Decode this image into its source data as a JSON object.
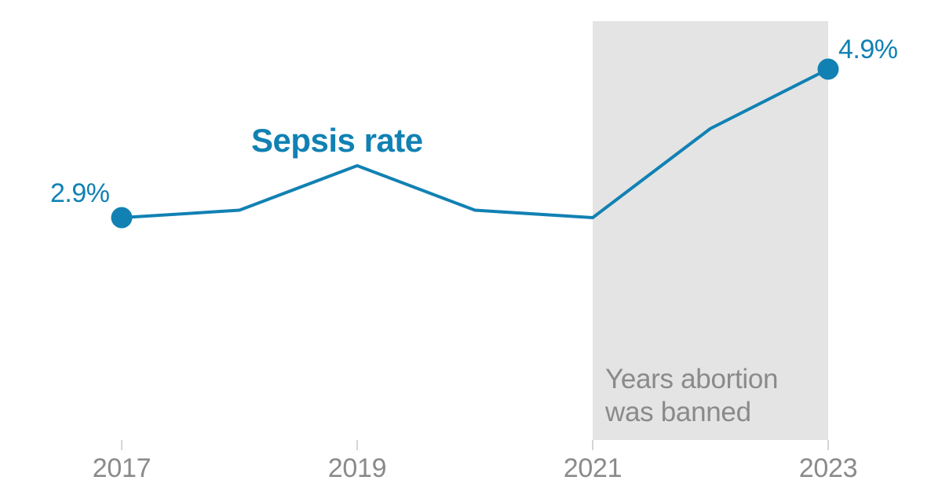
{
  "chart": {
    "title": "Sepsis rate",
    "annotation": {
      "lines": [
        "Years abortion",
        "was banned"
      ]
    },
    "point_labels": {
      "first": "2.9%",
      "last": "4.9%"
    },
    "colors": {
      "line": "#1181b3",
      "band": "#e4e4e4",
      "gray_text": "#8a8a8a",
      "tick": "#c9c9c9"
    }
  },
  "chart_data": {
    "type": "line",
    "title": "Sepsis rate",
    "x": [
      2017,
      2018,
      2019,
      2020,
      2021,
      2022,
      2023
    ],
    "values": [
      2.9,
      3.0,
      3.6,
      3.0,
      2.9,
      4.1,
      4.9
    ],
    "unit": "%",
    "x_ticks": [
      2017,
      2019,
      2021,
      2023
    ],
    "x_tick_labels": [
      "2017",
      "2019",
      "2021",
      "2023"
    ],
    "labeled_points": [
      {
        "x": 2017,
        "value": 2.9,
        "label": "2.9%"
      },
      {
        "x": 2023,
        "value": 4.9,
        "label": "4.9%"
      }
    ],
    "shaded_region": {
      "from_year": 2021,
      "to_year": 2023,
      "label": "Years abortion was banned"
    },
    "x_range": [
      2017,
      2023
    ],
    "y_range_shown": [
      2.9,
      4.9
    ],
    "grid": false,
    "legend": false
  }
}
